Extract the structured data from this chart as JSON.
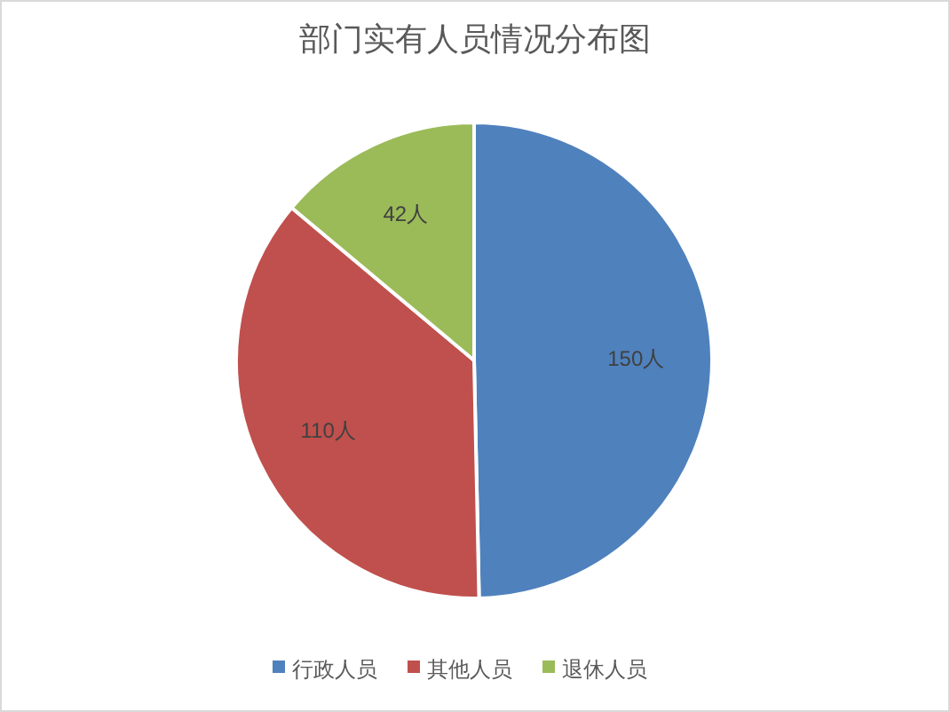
{
  "chart_data": {
    "type": "pie",
    "title": "部门实有人员情况分布图",
    "categories": [
      "行政人员",
      "其他人员",
      "退休人员"
    ],
    "values": [
      150,
      110,
      42
    ],
    "colors": [
      "#4f81bd",
      "#c0504d",
      "#9bbb59"
    ],
    "value_labels": [
      "150人",
      "110人",
      "42人"
    ],
    "legend": "bottom"
  }
}
